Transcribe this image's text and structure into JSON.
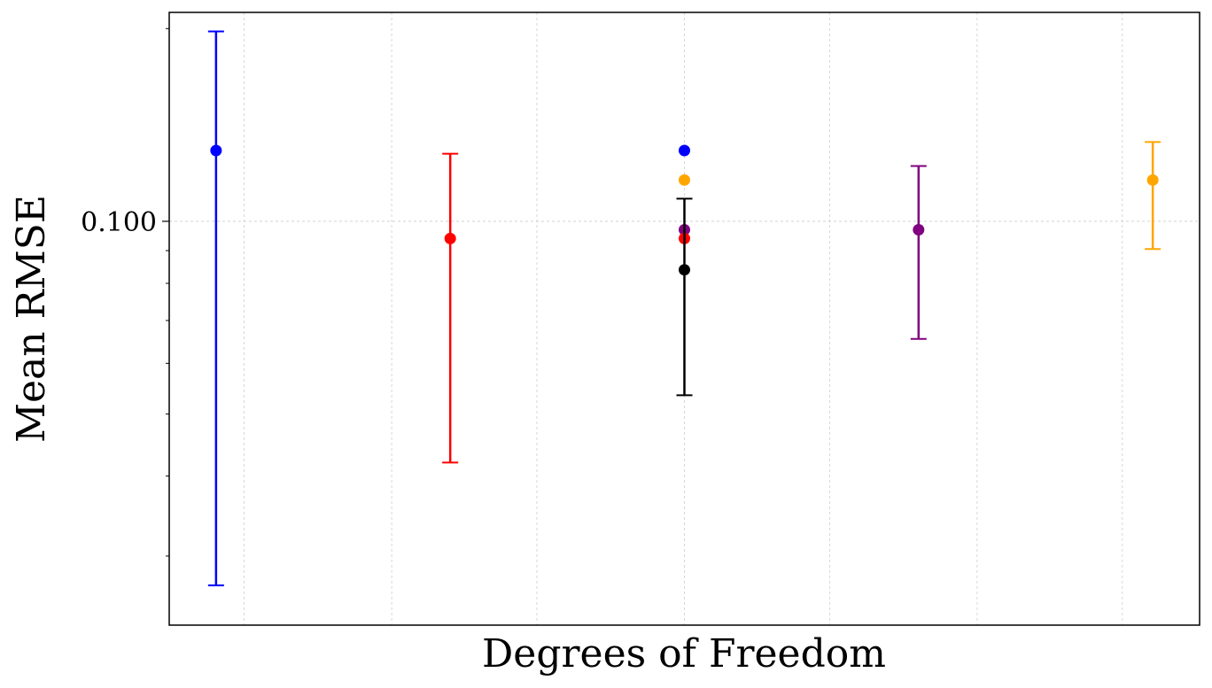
{
  "chart_data": {
    "type": "scatter",
    "xlabel": "Degrees of Freedom",
    "ylabel": "Mean RMSE",
    "yscale": "log",
    "ylim": [
      0.0234,
      0.212
    ],
    "xlim": [
      0.12,
      4.52
    ],
    "grid": true,
    "yticks": [
      {
        "value": 0.1,
        "label": "0.100"
      }
    ],
    "xgrid": [
      0.44,
      1.07,
      1.69,
      2.32,
      2.94,
      3.57,
      4.19
    ],
    "points": [
      {
        "x": 0.32,
        "y": 0.129,
        "yerr_low": 0.027,
        "yerr_high": 0.198,
        "color": "#0000ff"
      },
      {
        "x": 1.32,
        "y": 0.094,
        "yerr_low": 0.042,
        "yerr_high": 0.1275,
        "color": "#ff0000"
      },
      {
        "x": 2.32,
        "y": 0.129,
        "color": "#0000ff"
      },
      {
        "x": 2.32,
        "y": 0.116,
        "color": "#ffa500"
      },
      {
        "x": 2.32,
        "y": 0.097,
        "color": "#800080"
      },
      {
        "x": 2.32,
        "y": 0.094,
        "color": "#ff0000"
      },
      {
        "x": 2.32,
        "y": 0.084,
        "yerr_low": 0.0535,
        "yerr_high": 0.1085,
        "color": "#000000"
      },
      {
        "x": 3.32,
        "y": 0.097,
        "yerr_low": 0.0655,
        "yerr_high": 0.122,
        "color": "#800080"
      },
      {
        "x": 4.32,
        "y": 0.116,
        "yerr_low": 0.0905,
        "yerr_high": 0.133,
        "color": "#ffa500"
      }
    ]
  }
}
